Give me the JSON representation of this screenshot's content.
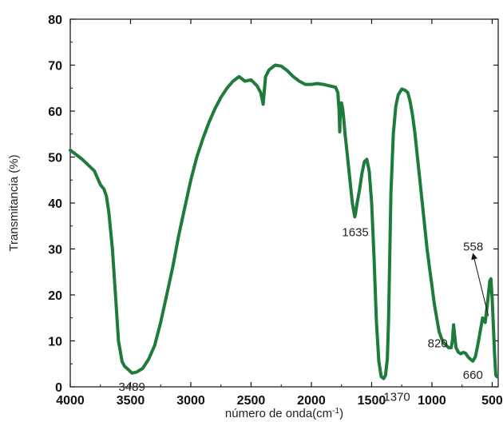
{
  "chart_data": {
    "type": "line",
    "title": "",
    "xlabel": "número de onda(cm",
    "xlabel_sup": "-1",
    "xlabel_suffix": ")",
    "ylabel": "Transmitancia (%)",
    "xlim": [
      4000,
      450
    ],
    "ylim": [
      0,
      80
    ],
    "x_reversed": true,
    "grid": false,
    "x_ticks": [
      "4000",
      "3500",
      "3000",
      "2500",
      "2000",
      "1500",
      "1000",
      "500"
    ],
    "y_ticks": [
      "0",
      "10",
      "20",
      "30",
      "40",
      "50",
      "60",
      "70",
      "80"
    ],
    "series": [
      {
        "color": "#1e7b3c",
        "x": [
          4000,
          3900,
          3800,
          3750,
          3720,
          3700,
          3680,
          3650,
          3620,
          3600,
          3570,
          3550,
          3500,
          3489,
          3450,
          3400,
          3350,
          3300,
          3250,
          3200,
          3150,
          3100,
          3050,
          3000,
          2950,
          2900,
          2850,
          2800,
          2750,
          2700,
          2650,
          2600,
          2550,
          2500,
          2450,
          2420,
          2400,
          2390,
          2380,
          2350,
          2300,
          2250,
          2200,
          2150,
          2100,
          2050,
          2000,
          1950,
          1900,
          1850,
          1800,
          1780,
          1770,
          1765,
          1760,
          1750,
          1740,
          1730,
          1720,
          1700,
          1680,
          1660,
          1640,
          1635,
          1620,
          1600,
          1580,
          1560,
          1540,
          1520,
          1500,
          1480,
          1460,
          1440,
          1420,
          1400,
          1385,
          1370,
          1360,
          1350,
          1340,
          1320,
          1300,
          1280,
          1250,
          1220,
          1200,
          1180,
          1160,
          1140,
          1120,
          1100,
          1080,
          1060,
          1040,
          1020,
          1000,
          980,
          960,
          940,
          920,
          900,
          880,
          860,
          840,
          830,
          820,
          810,
          800,
          780,
          760,
          740,
          720,
          700,
          680,
          660,
          640,
          620,
          600,
          580,
          558,
          540,
          520,
          510,
          500,
          490,
          480,
          470,
          460
        ],
        "y": [
          51.5,
          49.5,
          47,
          44,
          43,
          41.5,
          38,
          30,
          18,
          10,
          5.5,
          4.5,
          3.3,
          3,
          3.2,
          4,
          6,
          9,
          14,
          20,
          26,
          33,
          39,
          45,
          50,
          54,
          57.5,
          60.5,
          63,
          65,
          66.5,
          67.5,
          66.5,
          66.8,
          65.5,
          64,
          61.5,
          64.5,
          67.5,
          69,
          70,
          69.8,
          68.8,
          67.5,
          66.5,
          65.8,
          65.8,
          66,
          65.8,
          65.5,
          65.2,
          64,
          60,
          55.5,
          60,
          61.8,
          60.5,
          58,
          55,
          50,
          45,
          40,
          37,
          37.5,
          40,
          43,
          46.5,
          49,
          49.5,
          47,
          40,
          28,
          14,
          5.5,
          2.2,
          1.8,
          2.5,
          6,
          14,
          28,
          42,
          55,
          61,
          63.5,
          64.8,
          64.5,
          64,
          62,
          59,
          55,
          50,
          45,
          40,
          35,
          30,
          26,
          22,
          18,
          15,
          12,
          10.5,
          9.5,
          9,
          8.5,
          8.5,
          10,
          13.5,
          11,
          8.5,
          7.5,
          7.2,
          7.5,
          7.3,
          6.5,
          6,
          5.6,
          6.5,
          9,
          12,
          15,
          14,
          18,
          23,
          23.5,
          19,
          13,
          7,
          2.5,
          2.2
        ]
      }
    ],
    "annotations": [
      {
        "text": "3489",
        "x": 3489,
        "y": 3
      },
      {
        "text": "1635",
        "x": 1635,
        "y": 37
      },
      {
        "text": "1370",
        "x": 1370,
        "y": 1.8
      },
      {
        "text": "820",
        "x": 820,
        "y": 13.5
      },
      {
        "text": "660",
        "x": 660,
        "y": 5.6
      },
      {
        "text": "558",
        "x": 558,
        "y": 14,
        "arrow": true
      }
    ]
  }
}
